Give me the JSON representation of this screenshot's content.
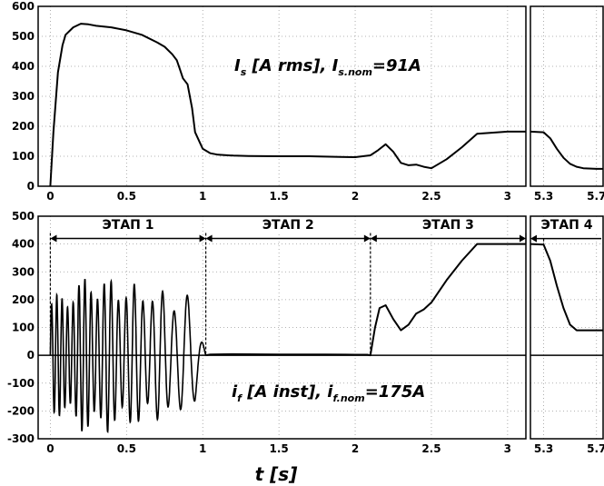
{
  "chart_data": [
    {
      "type": "line",
      "panel": "top-main",
      "xlim": [
        -0.08,
        3.12
      ],
      "ylim": [
        0,
        600
      ],
      "xticks": [
        0,
        0.5,
        1,
        1.5,
        2,
        2.5,
        3
      ],
      "yticks": [
        0,
        100,
        200,
        300,
        400,
        500,
        600
      ],
      "xtick_labels": [
        "0",
        "0.5",
        "1",
        "1.5",
        "2",
        "2.5",
        "3"
      ],
      "ytick_labels": [
        "0",
        "100",
        "200",
        "300",
        "400",
        "500",
        "600"
      ],
      "grid": true,
      "annotation": {
        "main": "I",
        "sub": "s",
        "mid": " [A rms], I",
        "sub2": "s.nom",
        "tail": "=91A"
      },
      "series": [
        {
          "x": [
            0,
            0.02,
            0.05,
            0.08,
            0.1,
            0.15,
            0.2,
            0.25,
            0.3,
            0.4,
            0.5,
            0.6,
            0.7,
            0.75,
            0.8,
            0.83,
            0.85,
            0.87,
            0.9,
            0.93,
            0.95,
            1.0,
            1.05,
            1.1,
            1.2,
            1.3,
            1.5,
            1.7,
            1.9,
            2.0,
            2.1,
            2.15,
            2.2,
            2.25,
            2.3,
            2.35,
            2.4,
            2.45,
            2.5,
            2.6,
            2.7,
            2.8,
            3.0,
            3.12
          ],
          "y": [
            0,
            180,
            380,
            470,
            505,
            530,
            542,
            540,
            535,
            530,
            520,
            505,
            480,
            465,
            440,
            420,
            390,
            360,
            340,
            260,
            180,
            125,
            110,
            105,
            102,
            101,
            100,
            100,
            98,
            97,
            103,
            120,
            140,
            115,
            78,
            70,
            72,
            65,
            60,
            90,
            130,
            175,
            182,
            182
          ]
        }
      ]
    },
    {
      "type": "line",
      "panel": "top-right",
      "xlim": [
        5.2,
        5.75
      ],
      "ylim": [
        0,
        600
      ],
      "xticks": [
        5.3,
        5.7
      ],
      "xtick_labels": [
        "5.3",
        "5.7"
      ],
      "grid": true,
      "series": [
        {
          "x": [
            5.2,
            5.3,
            5.35,
            5.4,
            5.45,
            5.5,
            5.55,
            5.6,
            5.7,
            5.75
          ],
          "y": [
            182,
            180,
            160,
            125,
            95,
            75,
            65,
            60,
            58,
            58
          ]
        }
      ]
    },
    {
      "type": "line",
      "panel": "bottom-main",
      "xlim": [
        -0.08,
        3.12
      ],
      "ylim": [
        -300,
        500
      ],
      "xticks": [
        0,
        0.5,
        1,
        1.5,
        2,
        2.5,
        3
      ],
      "yticks": [
        -300,
        -200,
        -100,
        0,
        100,
        200,
        300,
        400,
        500
      ],
      "xtick_labels": [
        "0",
        "0.5",
        "1",
        "1.5",
        "2",
        "2.5",
        "3"
      ],
      "ytick_labels": [
        "-300",
        "-200",
        "-100",
        "0",
        "100",
        "200",
        "300",
        "400",
        "500"
      ],
      "grid": true,
      "xlabel": "t [s]",
      "annotation": {
        "main": "i",
        "sub": "f",
        "mid": " [A inst], i",
        "sub2": "f.nom",
        "tail": "=175A"
      },
      "stages": [
        {
          "label": "ЭТАП 1",
          "x0": 0.0,
          "x1": 1.02
        },
        {
          "label": "ЭТАП 2",
          "x0": 1.02,
          "x1": 2.1
        },
        {
          "label": "ЭТАП 3",
          "x0": 2.1,
          "x1": 3.12
        }
      ],
      "stage_arrow_y": 420,
      "oscillation": {
        "x0": 0.0,
        "x1": 1.02,
        "amplitude_peak": 290,
        "freq_start": 30,
        "freq_end": 8
      },
      "series": [
        {
          "x": [
            1.02,
            1.05,
            1.2,
            1.5,
            1.8,
            2.0,
            2.08,
            2.1,
            2.13,
            2.16,
            2.2,
            2.25,
            2.3,
            2.35,
            2.4,
            2.45,
            2.5,
            2.6,
            2.7,
            2.8,
            3.0,
            3.12
          ],
          "y": [
            0,
            3,
            4,
            3,
            3,
            2,
            2,
            0,
            100,
            170,
            180,
            130,
            90,
            110,
            150,
            165,
            190,
            270,
            340,
            400,
            400,
            400
          ]
        }
      ]
    },
    {
      "type": "line",
      "panel": "bottom-right",
      "xlim": [
        5.2,
        5.75
      ],
      "ylim": [
        -300,
        500
      ],
      "xticks": [
        5.3,
        5.7
      ],
      "xtick_labels": [
        "5.3",
        "5.7"
      ],
      "grid": true,
      "stages": [
        {
          "label": "ЭТАП 4",
          "x0": 5.2,
          "x1": 5.75
        }
      ],
      "series": [
        {
          "x": [
            5.2,
            5.3,
            5.35,
            5.4,
            5.45,
            5.5,
            5.55,
            5.6,
            5.7,
            5.75
          ],
          "y": [
            400,
            398,
            340,
            250,
            170,
            110,
            90,
            90,
            90,
            90
          ]
        }
      ]
    }
  ]
}
